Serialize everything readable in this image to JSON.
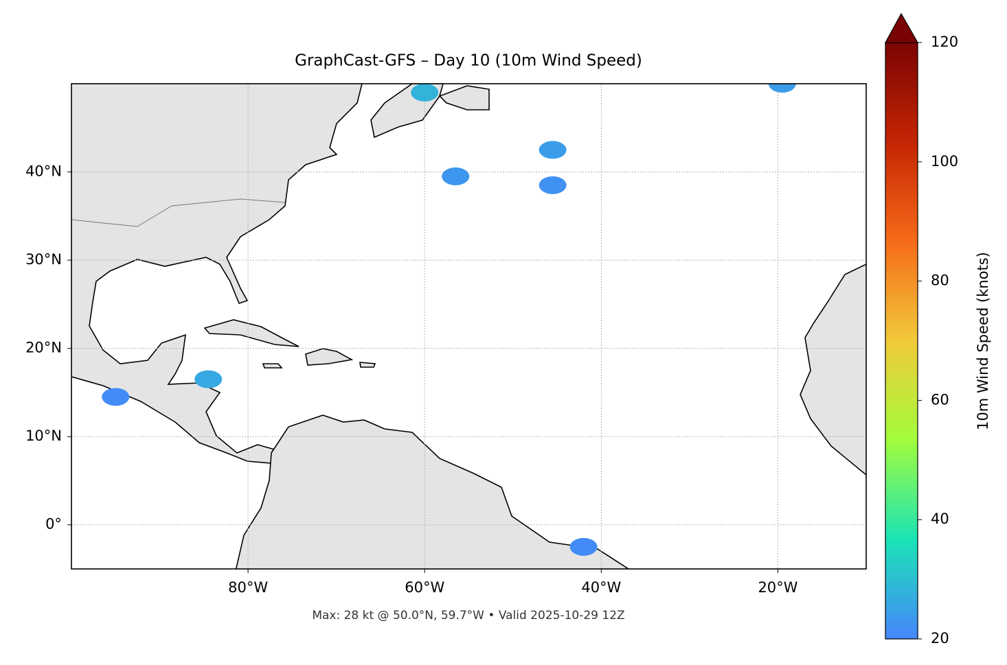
{
  "chart_data": {
    "type": "map",
    "title": "GraphCast-GFS – Day 10 (10m Wind Speed)",
    "caption": "Max: 28 kt @ 50.0°N, 59.7°W • Valid 2025-10-29 12Z",
    "xlim": [
      -100,
      -10
    ],
    "ylim": [
      -5,
      50
    ],
    "xticks": [
      {
        "value": -80,
        "label": "80°W"
      },
      {
        "value": -60,
        "label": "60°W"
      },
      {
        "value": -40,
        "label": "40°W"
      },
      {
        "value": -20,
        "label": "20°W"
      }
    ],
    "yticks": [
      {
        "value": 0,
        "label": "0°"
      },
      {
        "value": 10,
        "label": "10°N"
      },
      {
        "value": 20,
        "label": "20°N"
      },
      {
        "value": 30,
        "label": "30°N"
      },
      {
        "value": 40,
        "label": "40°N"
      }
    ],
    "grid": true,
    "colorbar": {
      "label": "10m Wind Speed (knots)",
      "clim": [
        20,
        120
      ],
      "ticks": [
        20,
        40,
        60,
        80,
        100,
        120
      ],
      "colors": [
        "#4686fb",
        "#1ae4b6",
        "#a2fc3c",
        "#f1ca3a",
        "#f66b19",
        "#c42503",
        "#7a0403"
      ]
    },
    "points": [
      {
        "lon": -60,
        "lat": 49,
        "value": 28
      },
      {
        "lon": -19.5,
        "lat": 50,
        "value": 24
      },
      {
        "lon": -45.5,
        "lat": 42.5,
        "value": 24
      },
      {
        "lon": -56.5,
        "lat": 39.5,
        "value": 23
      },
      {
        "lon": -45.5,
        "lat": 38.5,
        "value": 22
      },
      {
        "lon": -84.5,
        "lat": 16.5,
        "value": 26
      },
      {
        "lon": -95,
        "lat": 14.5,
        "value": 21
      },
      {
        "lon": -42,
        "lat": -2.5,
        "value": 21
      }
    ]
  }
}
